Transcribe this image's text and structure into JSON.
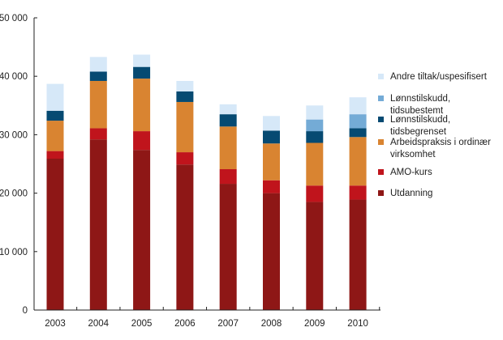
{
  "chart_data": {
    "type": "bar",
    "stacked": true,
    "title": "",
    "xlabel": "",
    "ylabel": "",
    "ylim": [
      0,
      50000
    ],
    "yticks": [
      0,
      10000,
      20000,
      30000,
      40000,
      50000
    ],
    "ytick_labels": [
      "0",
      "10 000",
      "20 000",
      "30 000",
      "40 000",
      "50 000"
    ],
    "grid": false,
    "legend_position": "right",
    "categories": [
      "2003",
      "2004",
      "2005",
      "2006",
      "2007",
      "2008",
      "2009",
      "2010"
    ],
    "series": [
      {
        "name": "Utdanning",
        "color": "#8e1716",
        "values": [
          25900,
          29200,
          27400,
          24900,
          21600,
          20000,
          18500,
          18900
        ]
      },
      {
        "name": "AMO-kurs",
        "color": "#c0141c",
        "values": [
          1300,
          1900,
          3200,
          2100,
          2500,
          2200,
          2800,
          2400
        ]
      },
      {
        "name": "Arbeidspraksis i ordinær virksomhet",
        "color": "#d98431",
        "values": [
          5200,
          8100,
          9000,
          8600,
          7300,
          6300,
          7300,
          8300
        ]
      },
      {
        "name": "Lønnstilskudd, tidsbegrenset",
        "color": "#064a72",
        "values": [
          1700,
          1600,
          2000,
          1800,
          2100,
          2200,
          2000,
          1500
        ]
      },
      {
        "name": "Lønnstilskudd, tidsubestemt",
        "color": "#74abd6",
        "values": [
          0,
          0,
          0,
          0,
          0,
          0,
          2000,
          2400
        ]
      },
      {
        "name": "Andre tiltak/uspesifisert",
        "color": "#d6e8f8",
        "values": [
          4600,
          2500,
          2100,
          1800,
          1700,
          2500,
          2400,
          2900
        ]
      }
    ],
    "legend": [
      {
        "label": "Andre tiltak/uspesifisert",
        "color": "#d6e8f8"
      },
      {
        "label": "Lønnstilskudd, tidsubestemt",
        "color": "#74abd6"
      },
      {
        "label": "Lønnstilskudd, tidsbegrenset",
        "color": "#064a72"
      },
      {
        "label": "Arbeidspraksis i ordinær virksomhet",
        "color": "#d98431"
      },
      {
        "label": "AMO-kurs",
        "color": "#c0141c"
      },
      {
        "label": "Utdanning",
        "color": "#8e1716"
      }
    ]
  }
}
